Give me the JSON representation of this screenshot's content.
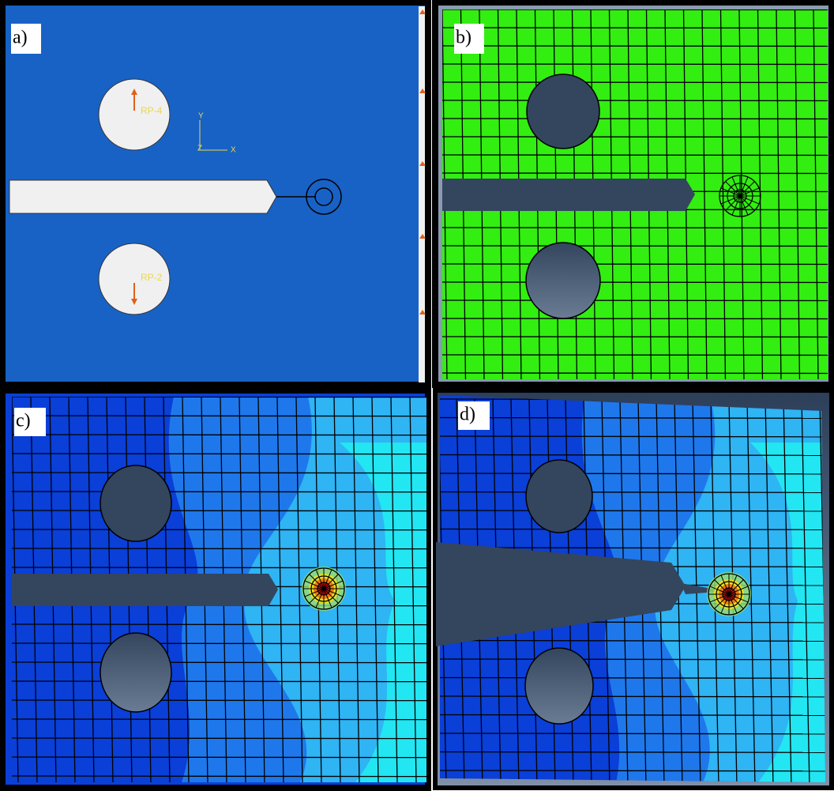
{
  "panels": [
    {
      "label": "a)"
    },
    {
      "label": "b)"
    },
    {
      "label": "c)"
    },
    {
      "label": "d)"
    }
  ],
  "annotations": {
    "rp_top": "RP-4",
    "rp_bottom": "RP-2",
    "axis_y": "Y",
    "axis_z": "Z",
    "axis_x": "X"
  }
}
